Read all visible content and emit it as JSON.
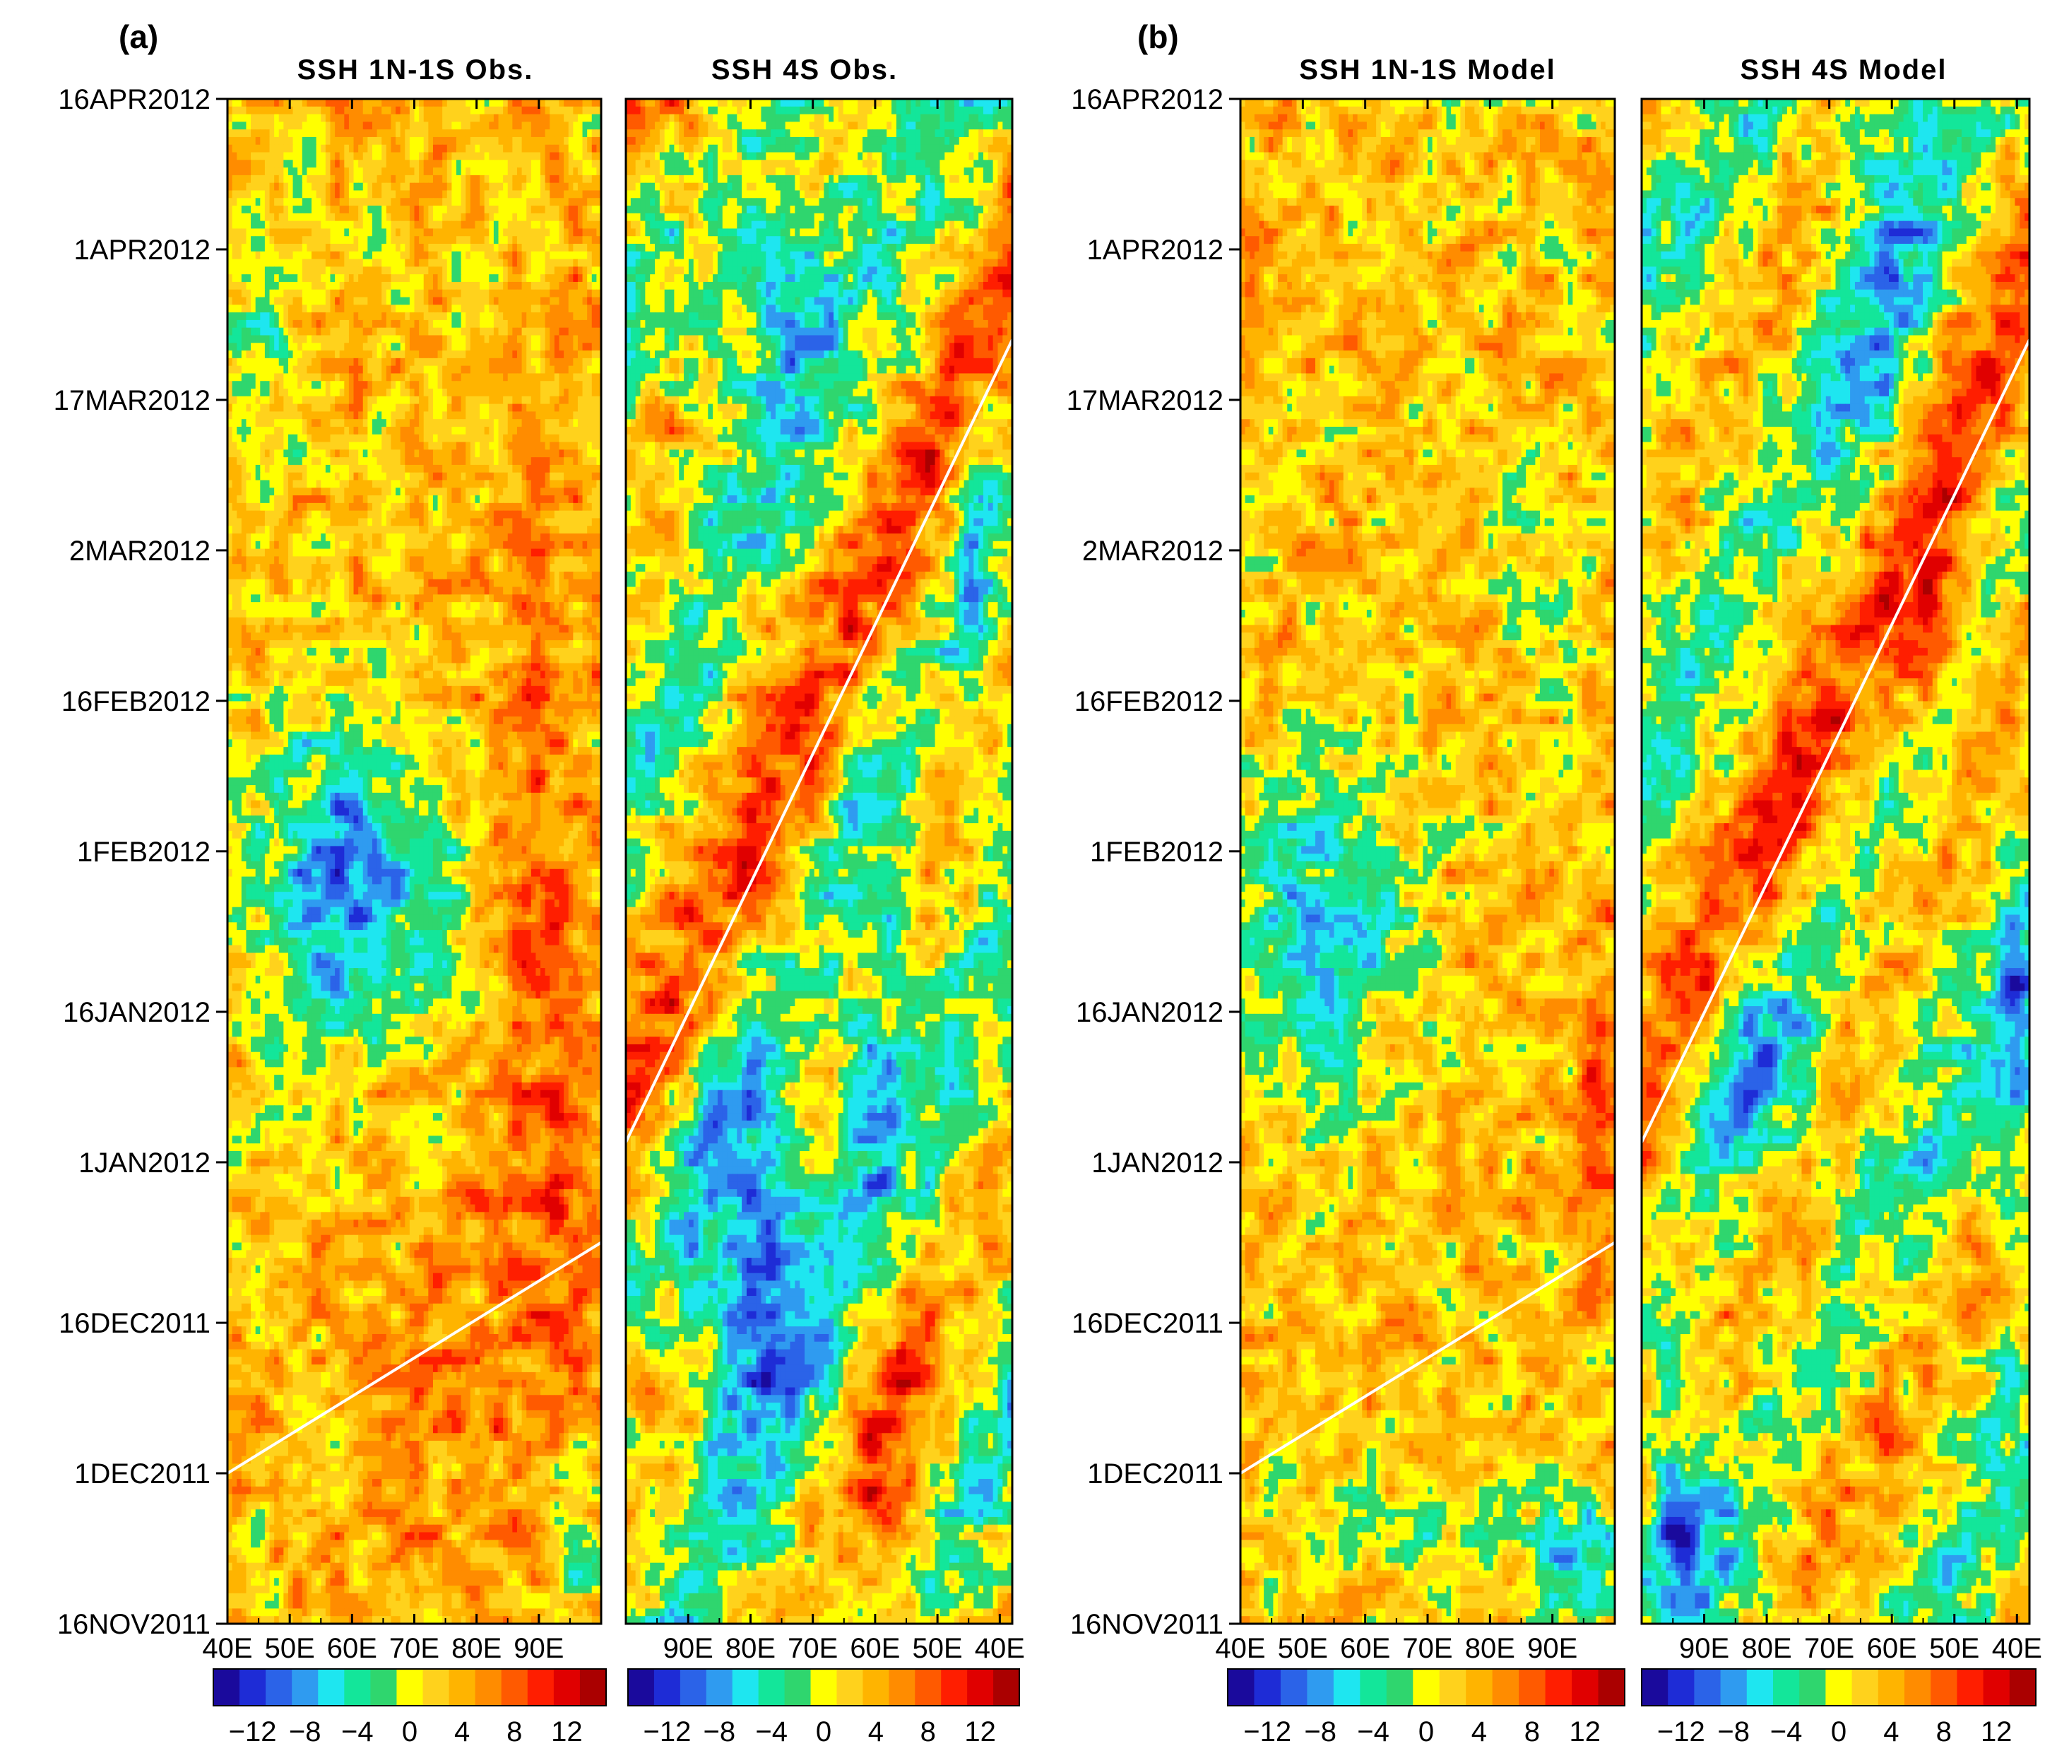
{
  "figure": {
    "panel_a_label": "(a)",
    "panel_b_label": "(b)"
  },
  "colorscale": {
    "colors": [
      "#1a0a9c",
      "#1e2cd6",
      "#2b63e8",
      "#2f9bf0",
      "#1ee6f0",
      "#13e69a",
      "#2fd66e",
      "#ffff00",
      "#ffd21c",
      "#ffb400",
      "#ff8c00",
      "#ff5a00",
      "#ff1e00",
      "#e00000",
      "#aa0000"
    ],
    "tick_labels": [
      "−12",
      "−8",
      "−4",
      "0",
      "4",
      "8",
      "12"
    ],
    "tick_values": [
      -12,
      -8,
      -4,
      0,
      4,
      8,
      12
    ],
    "boundaries": [
      -14,
      -12,
      -10,
      -8,
      -6,
      -4,
      -2,
      0,
      2,
      4,
      6,
      8,
      10,
      12,
      14
    ]
  },
  "chart_data": [
    {
      "type": "heatmap",
      "id": "a1",
      "title": "SSH  1N-1S Obs.",
      "xlabel": "",
      "ylabel": "",
      "x_ticks": [
        "40E",
        "50E",
        "60E",
        "70E",
        "80E",
        "90E"
      ],
      "x_tick_values": [
        40,
        50,
        60,
        70,
        80,
        90
      ],
      "xlim": [
        40,
        100
      ],
      "y_ticks": [
        "16NOV2011",
        "1DEC2011",
        "16DEC2011",
        "1JAN2012",
        "16JAN2012",
        "1FEB2012",
        "16FEB2012",
        "2MAR2012",
        "17MAR2012",
        "1APR2012",
        "16APR2012"
      ],
      "y_tick_values": [
        0,
        15,
        30,
        46,
        61,
        77,
        92,
        107,
        122,
        137,
        152
      ],
      "ylim": [
        0,
        152
      ],
      "line": {
        "x": [
          40,
          100
        ],
        "y": [
          15,
          38
        ]
      },
      "pattern": {
        "base": 4,
        "features": [
          [
            62,
            70,
            12,
            9,
            -9
          ],
          [
            58,
            82,
            10,
            9,
            -6
          ],
          [
            90,
            60,
            6,
            40,
            5
          ],
          [
            70,
            20,
            8,
            12,
            3
          ],
          [
            95,
            8,
            3,
            6,
            -7
          ],
          [
            46,
            130,
            4,
            10,
            -5
          ]
        ],
        "wave": [
          0,
          0,
          0
        ]
      }
    },
    {
      "type": "heatmap",
      "id": "a2",
      "title": "SSH  4S Obs.",
      "xlabel": "",
      "ylabel": "",
      "x_ticks": [
        "90E",
        "80E",
        "70E",
        "60E",
        "50E",
        "40E"
      ],
      "x_tick_values": [
        90,
        80,
        70,
        60,
        50,
        40
      ],
      "xlim": [
        100,
        38
      ],
      "y_ticks": [],
      "y_tick_values": [],
      "ylim": [
        0,
        152
      ],
      "line": {
        "x": [
          100,
          38
        ],
        "y": [
          48,
          128
        ]
      },
      "pattern": {
        "base": 1,
        "features": [
          [
            80,
            38,
            8,
            14,
            -11
          ],
          [
            78,
            140,
            8,
            15,
            -8
          ],
          [
            60,
            60,
            4,
            20,
            -7
          ],
          [
            58,
            18,
            5,
            15,
            8
          ],
          [
            44,
            108,
            3,
            12,
            -5
          ],
          [
            88,
            150,
            8,
            8,
            9
          ]
        ],
        "wave": [
          8,
          1.2,
          60
        ]
      }
    },
    {
      "type": "heatmap",
      "id": "b1",
      "title": "SSH  1N-1S Model",
      "xlabel": "",
      "ylabel": "",
      "x_ticks": [
        "40E",
        "50E",
        "60E",
        "70E",
        "80E",
        "90E"
      ],
      "x_tick_values": [
        40,
        50,
        60,
        70,
        80,
        90
      ],
      "xlim": [
        40,
        100
      ],
      "y_ticks": [
        "16NOV2011",
        "1DEC2011",
        "16DEC2011",
        "1JAN2012",
        "16JAN2012",
        "1FEB2012",
        "16FEB2012",
        "2MAR2012",
        "17MAR2012",
        "1APR2012",
        "16APR2012"
      ],
      "y_tick_values": [
        0,
        15,
        30,
        46,
        61,
        77,
        92,
        107,
        122,
        137,
        152
      ],
      "ylim": [
        0,
        152
      ],
      "line": {
        "x": [
          40,
          100
        ],
        "y": [
          15,
          38
        ]
      },
      "pattern": {
        "base": 4,
        "features": [
          [
            52,
            70,
            10,
            12,
            -9
          ],
          [
            94,
            6,
            5,
            5,
            -8
          ],
          [
            88,
            105,
            5,
            8,
            -4
          ],
          [
            45,
            142,
            4,
            8,
            0
          ],
          [
            98,
            50,
            3,
            10,
            6
          ],
          [
            70,
            10,
            15,
            5,
            -4
          ]
        ],
        "wave": [
          0,
          0,
          0
        ]
      }
    },
    {
      "type": "heatmap",
      "id": "b2",
      "title": "SSH  4S Model",
      "xlabel": "",
      "ylabel": "",
      "x_ticks": [
        "90E",
        "80E",
        "70E",
        "60E",
        "50E",
        "40E"
      ],
      "x_tick_values": [
        90,
        80,
        70,
        60,
        50,
        40
      ],
      "xlim": [
        100,
        38
      ],
      "y_ticks": [],
      "y_tick_values": [],
      "ylim": [
        0,
        152
      ],
      "line": {
        "x": [
          100,
          38
        ],
        "y": [
          48,
          128
        ]
      },
      "pattern": {
        "base": 1,
        "features": [
          [
            94,
            10,
            4,
            10,
            -10
          ],
          [
            82,
            55,
            8,
            8,
            -7
          ],
          [
            60,
            130,
            5,
            20,
            -5
          ],
          [
            40,
            55,
            3,
            10,
            -8
          ],
          [
            55,
            100,
            5,
            10,
            6
          ],
          [
            70,
            20,
            8,
            12,
            3
          ]
        ],
        "wave": [
          8,
          1.2,
          60
        ]
      }
    }
  ]
}
